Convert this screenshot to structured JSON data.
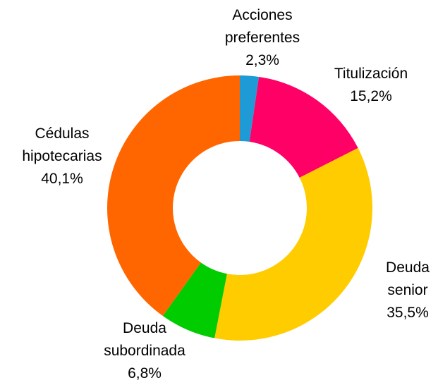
{
  "chart_data": {
    "type": "donut",
    "categories": [
      "Acciones preferentes",
      "Titulización",
      "Deuda senior",
      "Deuda subordinada",
      "Cédulas hipotecarias"
    ],
    "values": [
      2.3,
      15.2,
      35.5,
      6.8,
      40.1
    ],
    "value_labels": [
      "2,3%",
      "15,2%",
      "35,5%",
      "6,8%",
      "40,1%"
    ],
    "colors": [
      "#1e9bd7",
      "#ff0066",
      "#ffcc00",
      "#00cc00",
      "#ff6600"
    ]
  }
}
